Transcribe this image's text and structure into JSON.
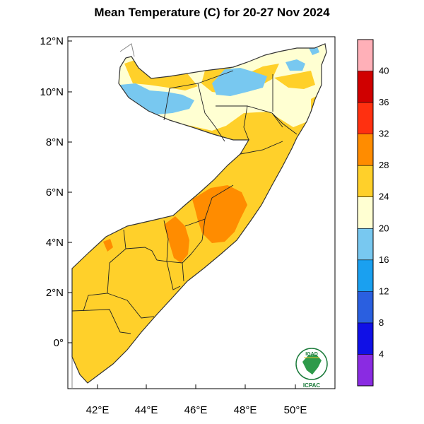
{
  "title": "Mean Temperature (C) for 20-27 Nov 2024",
  "axes": {
    "lat_labels": [
      "12°N",
      "10°N",
      "8°N",
      "6°N",
      "4°N",
      "2°N",
      "0°"
    ],
    "lon_labels": [
      "42°E",
      "44°E",
      "46°E",
      "48°E",
      "50°E"
    ],
    "lon_range": [
      41,
      51.5
    ],
    "lat_range": [
      -1.8,
      12.2
    ]
  },
  "colorbar": {
    "labels": [
      "4",
      "8",
      "12",
      "16",
      "20",
      "24",
      "28",
      "32",
      "36",
      "40"
    ],
    "colors": [
      "#8a2be2",
      "#1010e6",
      "#2a5fe0",
      "#1aa0f0",
      "#78c8f0",
      "#ffffd2",
      "#ffd02a",
      "#ff8c00",
      "#ff3010",
      "#d00000",
      "#ffb0b8"
    ]
  },
  "logo": {
    "top_text": "IGAD",
    "bottom_text": "ICPAC"
  }
}
